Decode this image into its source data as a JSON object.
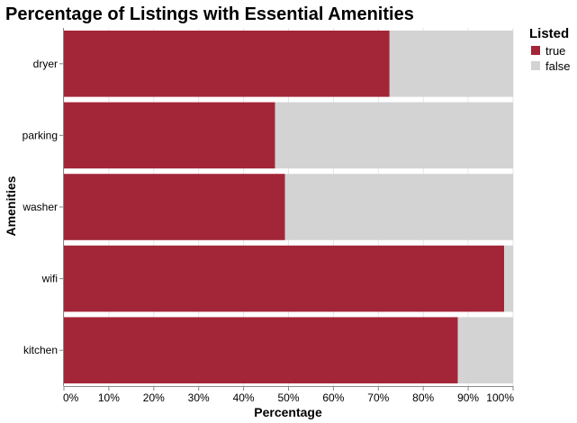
{
  "chart_data": {
    "type": "bar",
    "orientation": "horizontal",
    "stacked": true,
    "normalized": true,
    "title": "Percentage of Listings with Essential Amenities",
    "xlabel": "Percentage",
    "ylabel": "Amenities",
    "categories": [
      "dryer",
      "parking",
      "washer",
      "wifi",
      "kitchen"
    ],
    "series": [
      {
        "name": "true",
        "color": "#a32638",
        "values": [
          72.5,
          47,
          49.2,
          98,
          87.7
        ]
      },
      {
        "name": "false",
        "color": "#d3d3d3",
        "values": [
          27.5,
          53,
          50.8,
          2,
          12.3
        ]
      }
    ],
    "xlim": [
      0,
      100
    ],
    "xticks": [
      "0%",
      "10%",
      "20%",
      "30%",
      "40%",
      "50%",
      "60%",
      "70%",
      "80%",
      "90%",
      "100%"
    ],
    "grid": true,
    "legend": {
      "title": "Listed",
      "position": "top-right",
      "entries": [
        "true",
        "false"
      ]
    }
  }
}
